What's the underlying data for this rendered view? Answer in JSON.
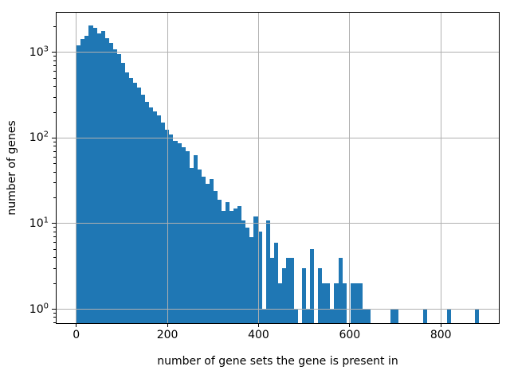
{
  "figure": {
    "background": "#ffffff"
  },
  "chart_data": {
    "type": "bar",
    "subtype": "histogram-log-y",
    "title": "",
    "xlabel": "number of gene sets the gene is present in",
    "ylabel": "number of genes",
    "bar_color": "#1f77b4",
    "grid_color": "#b0b0b0",
    "spine_color": "#000000",
    "grid": "on",
    "yscale": "log",
    "xscale": "linear",
    "xlim": [
      -45,
      929
    ],
    "ylim": [
      0.674,
      2970
    ],
    "xticks": [
      {
        "value": 0,
        "label": "0"
      },
      {
        "value": 200,
        "label": "200"
      },
      {
        "value": 400,
        "label": "400"
      },
      {
        "value": 600,
        "label": "600"
      },
      {
        "value": 800,
        "label": "800"
      }
    ],
    "yticks": [
      {
        "value": 1,
        "base": "10",
        "exponent": "0"
      },
      {
        "value": 10,
        "base": "10",
        "exponent": "1"
      },
      {
        "value": 100,
        "base": "10",
        "exponent": "2"
      },
      {
        "value": 1000,
        "base": "10",
        "exponent": "3"
      }
    ],
    "y_minor_tick_decades": [
      -1,
      0,
      1,
      2,
      3
    ],
    "bin_start": 1,
    "bin_width": 8.83,
    "counts": [
      1215,
      1430,
      1560,
      2080,
      1935,
      1680,
      1780,
      1470,
      1280,
      1090,
      950,
      760,
      580,
      500,
      440,
      385,
      320,
      265,
      230,
      205,
      185,
      150,
      125,
      111,
      93,
      87,
      78,
      70,
      45,
      63,
      43,
      35,
      29,
      33,
      24,
      19,
      14,
      18,
      14,
      15,
      16,
      11,
      9,
      7,
      12,
      8,
      1,
      11,
      4,
      6,
      2,
      3,
      4,
      4,
      1,
      0,
      3,
      1,
      5,
      0,
      3,
      2,
      2,
      1,
      2,
      4,
      2,
      0,
      2,
      2,
      2,
      1,
      1,
      0,
      0,
      0,
      0,
      0,
      1,
      1,
      0,
      0,
      0,
      0,
      0,
      0,
      1,
      0,
      0,
      0,
      0,
      0,
      1,
      0,
      0,
      0,
      0,
      0,
      0,
      1
    ]
  }
}
